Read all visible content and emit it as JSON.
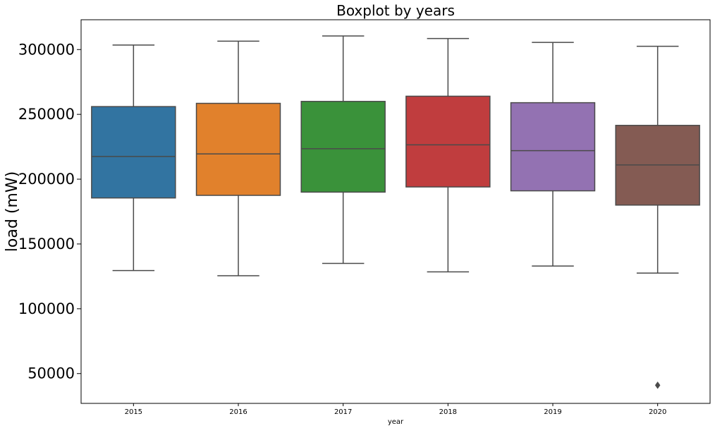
{
  "chart_data": {
    "type": "boxplot",
    "title": "Boxplot by years",
    "xlabel": "year",
    "ylabel": "load (mW)",
    "ylim": [
      27000,
      323000
    ],
    "yticks": [
      50000,
      100000,
      150000,
      200000,
      250000,
      300000
    ],
    "ytick_labels": [
      "50000",
      "100000",
      "150000",
      "200000",
      "250000",
      "300000"
    ],
    "categories": [
      "2015",
      "2016",
      "2017",
      "2018",
      "2019",
      "2020"
    ],
    "colors": [
      "#3274a1",
      "#e1812c",
      "#3a923a",
      "#c03d3e",
      "#9372b2",
      "#845b53"
    ],
    "edge_color": "#4a4a4a",
    "grid": false,
    "boxes": [
      {
        "category": "2015",
        "whislo": 129500,
        "q1": 185500,
        "med": 217500,
        "q3": 256000,
        "whishi": 303500,
        "fliers": []
      },
      {
        "category": "2016",
        "whislo": 125500,
        "q1": 187500,
        "med": 219500,
        "q3": 258500,
        "whishi": 306500,
        "fliers": []
      },
      {
        "category": "2017",
        "whislo": 135000,
        "q1": 190000,
        "med": 223500,
        "q3": 260000,
        "whishi": 310500,
        "fliers": []
      },
      {
        "category": "2018",
        "whislo": 128500,
        "q1": 194000,
        "med": 226500,
        "q3": 264000,
        "whishi": 308500,
        "fliers": []
      },
      {
        "category": "2019",
        "whislo": 133000,
        "q1": 191000,
        "med": 222000,
        "q3": 259000,
        "whishi": 305500,
        "fliers": []
      },
      {
        "category": "2020",
        "whislo": 127500,
        "q1": 180000,
        "med": 211000,
        "q3": 241500,
        "whishi": 302500,
        "fliers": [
          41000
        ]
      }
    ]
  }
}
